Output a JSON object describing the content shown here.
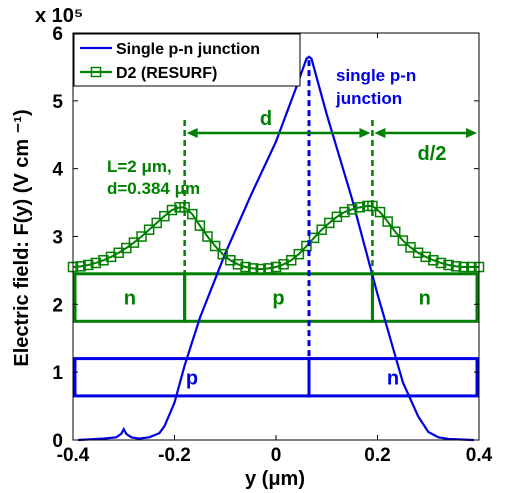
{
  "chart_data": {
    "type": "line",
    "xlabel": "y (μm)",
    "ylabel": "Electric field: F(y)  (V cm ⁻¹)",
    "y_exponent": "x 10⁵",
    "xlim": [
      -0.4,
      0.4
    ],
    "ylim": [
      0,
      600000
    ],
    "x_ticks": [
      -0.4,
      -0.2,
      0,
      0.2,
      0.4
    ],
    "x_tick_labels": [
      "-0.4",
      "-0.2",
      "0",
      "0.2",
      "0.4"
    ],
    "y_ticks": [
      0,
      100000,
      200000,
      300000,
      400000,
      500000,
      600000
    ],
    "y_tick_labels": [
      "0",
      "1",
      "2",
      "3",
      "4",
      "5",
      "6"
    ],
    "grid": false,
    "legend_position": "top-left",
    "colors": {
      "single": "#0000e6",
      "d2": "#007f00"
    },
    "series": [
      {
        "name": "Single p-n junction",
        "marker": "none",
        "x": [
          -0.39,
          -0.34,
          -0.315,
          -0.305,
          -0.3,
          -0.295,
          -0.285,
          -0.27,
          -0.25,
          -0.23,
          -0.22,
          -0.2,
          -0.18,
          -0.15,
          -0.1,
          -0.05,
          0,
          0.04,
          0.06,
          0.065,
          0.07,
          0.1,
          0.15,
          0.2,
          0.25,
          0.28,
          0.3,
          0.32,
          0.34,
          0.37,
          0.39
        ],
        "y": [
          0,
          2000,
          4000,
          9000,
          16000,
          9000,
          4000,
          2000,
          4000,
          10000,
          20000,
          55000,
          110000,
          180000,
          275000,
          360000,
          440000,
          520000,
          562000,
          565000,
          562000,
          480000,
          355000,
          215000,
          85000,
          35000,
          12000,
          4000,
          1500,
          500,
          0
        ]
      },
      {
        "name": "D2 (RESURF)",
        "marker": "square",
        "x": [
          -0.4,
          -0.385,
          -0.37,
          -0.355,
          -0.34,
          -0.325,
          -0.31,
          -0.295,
          -0.28,
          -0.265,
          -0.25,
          -0.235,
          -0.22,
          -0.205,
          -0.19,
          -0.18,
          -0.165,
          -0.15,
          -0.135,
          -0.12,
          -0.105,
          -0.09,
          -0.075,
          -0.06,
          -0.045,
          -0.03,
          -0.015,
          0,
          0.015,
          0.03,
          0.045,
          0.06,
          0.075,
          0.09,
          0.105,
          0.12,
          0.135,
          0.15,
          0.165,
          0.18,
          0.19,
          0.205,
          0.22,
          0.235,
          0.25,
          0.265,
          0.28,
          0.295,
          0.31,
          0.325,
          0.34,
          0.355,
          0.37,
          0.385,
          0.4
        ],
        "y": [
          255000,
          256000,
          258000,
          261000,
          265000,
          270000,
          276000,
          283000,
          291000,
          300000,
          310000,
          320000,
          330000,
          339000,
          343000,
          343000,
          333000,
          316000,
          300000,
          286000,
          274000,
          265000,
          259000,
          255000,
          253000,
          252000,
          253000,
          255000,
          259000,
          265000,
          274000,
          286000,
          298000,
          310000,
          320000,
          329000,
          336000,
          340000,
          343000,
          345000,
          345000,
          336000,
          322000,
          307000,
          294000,
          284000,
          276000,
          270000,
          265000,
          261000,
          258000,
          256000,
          255000,
          255000,
          255000
        ]
      }
    ],
    "annotations": {
      "single_label_1": "single p-n",
      "single_label_2": "junction",
      "d_label": "d",
      "d2_label": "d/2",
      "param_1": "L=2 μm,",
      "param_2": "d=0.384 μm"
    },
    "vlines": {
      "single_center": 0.065,
      "d2_left": -0.18,
      "d2_right": 0.19
    },
    "regions": [
      {
        "group": "d2",
        "label": "n",
        "x0": -0.4,
        "x1": -0.18,
        "y0": 175000,
        "y1": 245000
      },
      {
        "group": "d2",
        "label": "p",
        "x0": -0.18,
        "x1": 0.19,
        "y0": 175000,
        "y1": 245000
      },
      {
        "group": "d2",
        "label": "n",
        "x0": 0.19,
        "x1": 0.4,
        "y0": 175000,
        "y1": 245000
      },
      {
        "group": "single",
        "label": "p",
        "x0": -0.4,
        "x1": 0.065,
        "y0": 65000,
        "y1": 120000
      },
      {
        "group": "single",
        "label": "n",
        "x0": 0.065,
        "x1": 0.4,
        "y0": 65000,
        "y1": 120000
      }
    ]
  }
}
